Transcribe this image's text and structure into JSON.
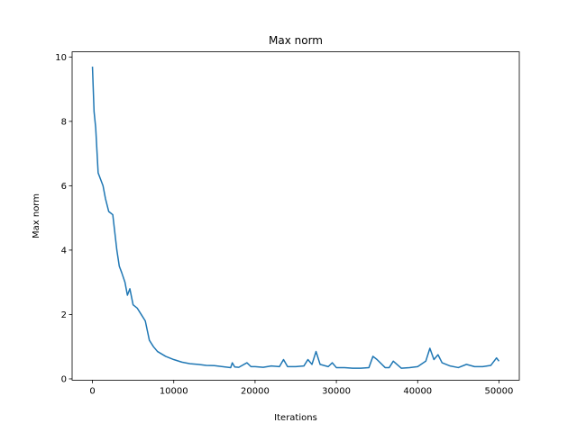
{
  "chart_data": {
    "type": "line",
    "title": "Max norm",
    "xlabel": "Iterations",
    "ylabel": "Max norm",
    "x": [
      0,
      200,
      400,
      700,
      1000,
      1300,
      1600,
      2000,
      2500,
      3000,
      3300,
      3600,
      4000,
      4300,
      4600,
      5000,
      5500,
      6000,
      6500,
      7000,
      7500,
      8000,
      9000,
      10000,
      11000,
      12000,
      13000,
      14000,
      15000,
      16000,
      17000,
      17200,
      17500,
      18000,
      19000,
      19500,
      20000,
      21000,
      22000,
      23000,
      23500,
      24000,
      25000,
      26000,
      26500,
      27000,
      27500,
      28000,
      29000,
      29500,
      30000,
      31000,
      32000,
      33000,
      34000,
      34500,
      35000,
      36000,
      36500,
      37000,
      38000,
      39000,
      40000,
      41000,
      41500,
      42000,
      42500,
      43000,
      44000,
      45000,
      46000,
      47000,
      48000,
      49000,
      49700,
      50000
    ],
    "series": [
      {
        "color": "#1f77b4",
        "values": [
          9.7,
          8.3,
          7.8,
          6.4,
          6.2,
          6.0,
          5.6,
          5.2,
          5.1,
          4.0,
          3.5,
          3.3,
          3.0,
          2.6,
          2.8,
          2.3,
          2.2,
          2.0,
          1.8,
          1.2,
          1.0,
          0.85,
          0.7,
          0.6,
          0.52,
          0.47,
          0.45,
          0.42,
          0.41,
          0.38,
          0.35,
          0.5,
          0.37,
          0.36,
          0.5,
          0.38,
          0.38,
          0.36,
          0.4,
          0.38,
          0.6,
          0.38,
          0.38,
          0.4,
          0.6,
          0.45,
          0.85,
          0.45,
          0.38,
          0.5,
          0.35,
          0.35,
          0.33,
          0.33,
          0.35,
          0.7,
          0.6,
          0.35,
          0.35,
          0.55,
          0.33,
          0.35,
          0.38,
          0.55,
          0.95,
          0.6,
          0.75,
          0.5,
          0.4,
          0.35,
          0.45,
          0.38,
          0.38,
          0.42,
          0.65,
          0.55
        ]
      }
    ],
    "xlim": [
      -2500,
      52500
    ],
    "ylim": [
      -0.04,
      10.16
    ],
    "xticks": [
      0,
      10000,
      20000,
      30000,
      40000,
      50000
    ],
    "yticks": [
      0,
      2,
      4,
      6,
      8,
      10
    ]
  }
}
